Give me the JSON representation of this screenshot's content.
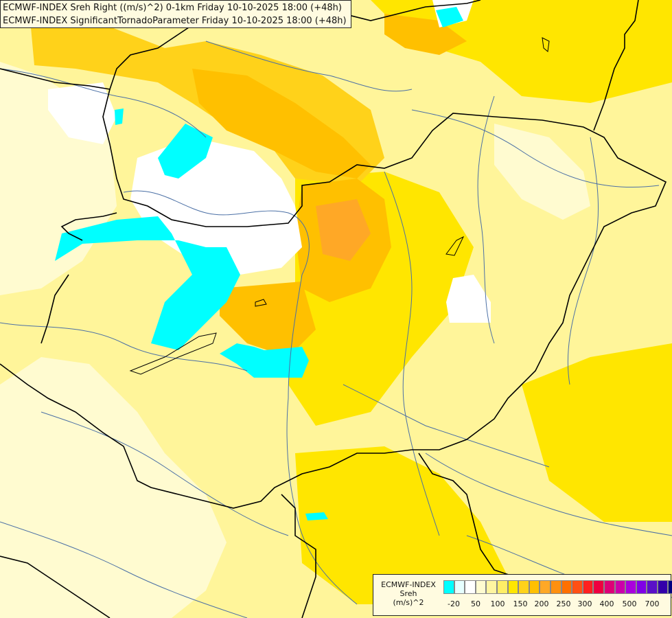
{
  "title": {
    "line1": "ECMWF-INDEX Sreh Right ((m/s)^2) 0-1km Friday 10-10-2025 18:00 (+48h)",
    "line2": "ECMWF-INDEX SignificantTornadoParameter Friday 10-10-2025 18:00 (+48h)"
  },
  "legend": {
    "line1": "ECMWF-INDEX",
    "line2": "Sreh",
    "line3": "(m/s)^2",
    "colors": [
      "#00ffff",
      "#e6ffff",
      "#ffffff",
      "#fffbd0",
      "#fff5a0",
      "#ffee66",
      "#ffe600",
      "#ffd21a",
      "#ffc000",
      "#ffa826",
      "#ff9010",
      "#ff7000",
      "#ff5014",
      "#ff2020",
      "#ee0040",
      "#dd0077",
      "#cc00aa",
      "#aa00dd",
      "#8000e6",
      "#5a10c8",
      "#3300aa",
      "#000080"
    ],
    "ticks": [
      "-20",
      "50",
      "100",
      "150",
      "200",
      "250",
      "300",
      "400",
      "500",
      "700"
    ]
  },
  "map": {
    "palette": {
      "background": "#fff59a",
      "pale": "#fffbd0",
      "yellow": "#ffee66",
      "gold": "#ffe600",
      "light_orange": "#ffd21a",
      "orange": "#ffc000",
      "deep_orange": "#ffa826",
      "white": "#ffffff",
      "cyan": "#00ffff",
      "border": "#000000",
      "river": "#4a6fa5"
    }
  }
}
